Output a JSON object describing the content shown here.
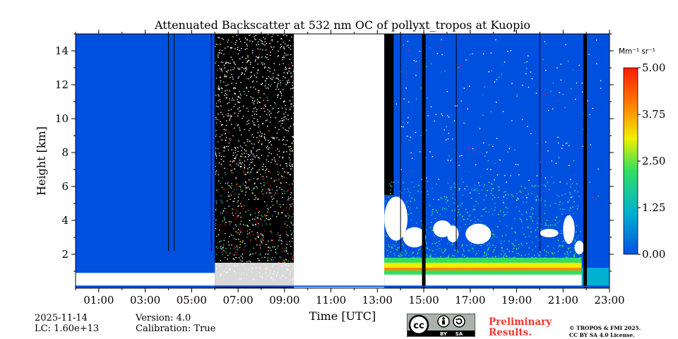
{
  "chart_data": {
    "type": "heatmap",
    "title": "Attenuated Backscatter at 532 nm OC of pollyxt_tropos at Kuopio",
    "xlabel": "Time [UTC]",
    "ylabel": "Height [km]",
    "xlim_hours": [
      0,
      23
    ],
    "ylim_km": [
      0,
      15
    ],
    "x_ticks": [
      1,
      3,
      5,
      7,
      9,
      11,
      13,
      15,
      17,
      19,
      21,
      23
    ],
    "x_tick_labels": [
      "01:00",
      "03:00",
      "05:00",
      "07:00",
      "09:00",
      "11:00",
      "13:00",
      "15:00",
      "17:00",
      "19:00",
      "21:00",
      "23:00"
    ],
    "y_ticks": [
      2,
      4,
      6,
      8,
      10,
      12,
      14
    ],
    "y_tick_labels": [
      "2",
      "4",
      "6",
      "8",
      "10",
      "12",
      "14"
    ],
    "colorbar": {
      "unit_label": "Mm⁻¹ sr⁻¹",
      "range": [
        0,
        5
      ],
      "ticks": [
        0,
        1.25,
        2.5,
        3.75,
        5
      ],
      "tick_labels": [
        "0.00",
        "1.25",
        "2.50",
        "3.75",
        "5.00"
      ],
      "colors": [
        "#0050e0",
        "#00b0d0",
        "#30e060",
        "#f0f000",
        "#ff8000",
        "#ff1a00"
      ]
    },
    "no_data_intervals_hours": [
      [
        9.4,
        13.3
      ]
    ],
    "noisy_interval_hours": [
      6.0,
      9.4
    ],
    "signal_layers": [
      {
        "name": "boundary layer",
        "start_h": 0.0,
        "end_h": 9.4,
        "top_km": 0.9
      },
      {
        "name": "aerosol layer",
        "start_h": 13.3,
        "end_h": 21.8,
        "top_km": 1.8
      },
      {
        "name": "clouds",
        "start_h": 13.3,
        "end_h": 21.5,
        "base_km": 2.2,
        "top_km": 5.5
      }
    ],
    "gap_lines_hours": [
      4.0,
      4.25,
      5.85,
      6.0,
      6.1,
      14.0,
      16.4,
      20.0
    ],
    "thick_gap_lines_hours": [
      15.0,
      21.95
    ]
  },
  "footer": {
    "date": "2025-11-14",
    "lidar_constant": "LC: 1.60e+13",
    "version": "Version: 4.0",
    "calibration": "Calibration: True",
    "preliminary_line1": "Preliminary",
    "preliminary_line2": "Results.",
    "copyright_line1": "© TROPOS & FMI 2025.",
    "copyright_line2": "CC BY SA 4.0 License.",
    "license_badge": {
      "cc": "cc",
      "by": "BY",
      "sa": "SA"
    }
  }
}
